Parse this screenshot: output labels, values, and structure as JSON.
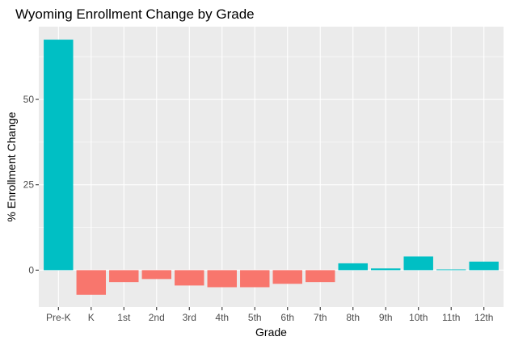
{
  "chart_data": {
    "type": "bar",
    "title": "Wyoming Enrollment Change by Grade",
    "xlabel": "Grade",
    "ylabel": "% Enrollment Change",
    "categories": [
      "Pre-K",
      "K",
      "1st",
      "2nd",
      "3rd",
      "4th",
      "5th",
      "6th",
      "7th",
      "8th",
      "9th",
      "10th",
      "11th",
      "12th"
    ],
    "values": [
      67.5,
      -7.2,
      -3.5,
      -2.6,
      -4.5,
      -5.0,
      -5.0,
      -4.0,
      -3.5,
      2.0,
      0.5,
      4.0,
      0.2,
      2.5
    ],
    "ylim": [
      -10.8,
      71.3
    ],
    "yticks": [
      0,
      25,
      50
    ],
    "ytick_labels": [
      "0",
      "25",
      "50"
    ],
    "grid": true,
    "colors": {
      "positive": "#00BFC4",
      "negative": "#F8766D",
      "panel": "#EBEBEB",
      "grid": "#FFFFFF"
    }
  }
}
